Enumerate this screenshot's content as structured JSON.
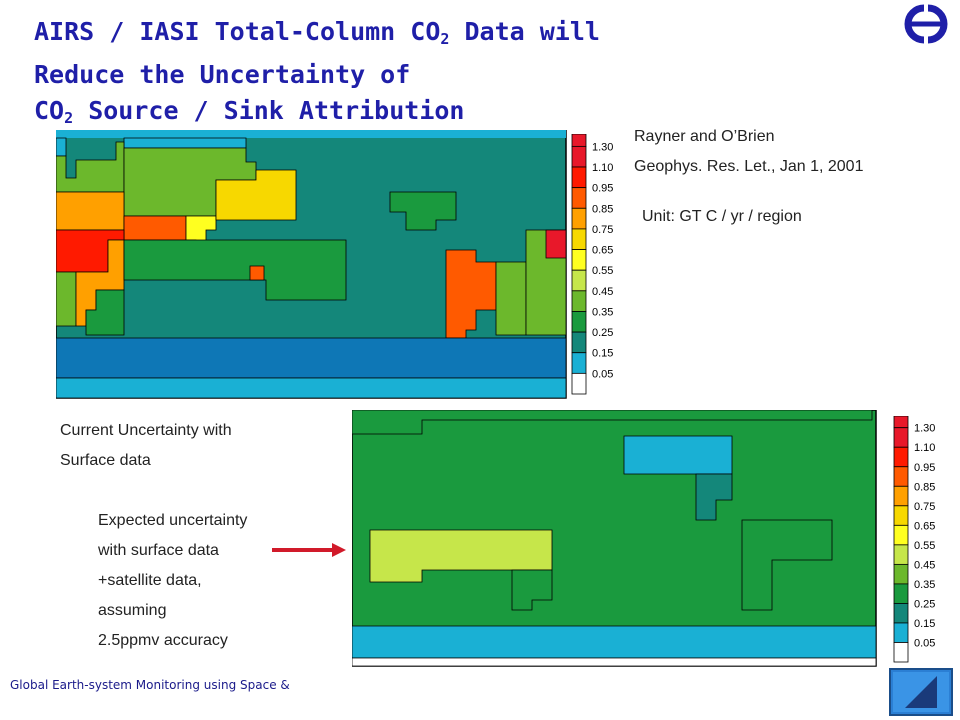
{
  "title": {
    "line1_pre": "AIRS / IASI Total-Column  CO",
    "line1_sub": "2",
    "line1_post": " Data will",
    "line2": "Reduce the Uncertainty  of",
    "line3_pre": "CO",
    "line3_sub": "2",
    "line3_post": "  Source / Sink  Attribution"
  },
  "logo": {
    "icon": "ecmwf-logo-icon",
    "color": "#1f1fa8"
  },
  "reference": {
    "authors": "Rayner and O’Brien",
    "journal": "Geophys. Res. Let., Jan 1, 2001",
    "unit": "Unit: GT C / yr / region"
  },
  "colorbar": {
    "labels": [
      "1.30",
      "1.10",
      "0.95",
      "0.85",
      "0.75",
      "0.65",
      "0.55",
      "0.45",
      "0.35",
      "0.25",
      "0.15",
      "0.05"
    ],
    "colors": [
      "#e8182a",
      "#ff1a00",
      "#ff5a00",
      "#ffa000",
      "#f7d800",
      "#ffff20",
      "#c6e64a",
      "#6cb82c",
      "#1a9a3e",
      "#14877a",
      "#1ab0d4",
      "#ffffff"
    ]
  },
  "map_top_caption": {
    "line1": "Current Uncertainty with",
    "line2": "Surface data"
  },
  "map_bottom_caption": {
    "line1": "Expected uncertainty",
    "line2": "with surface data",
    "line3": "+satellite data,",
    "line4": "assuming",
    "line5": "2.5ppmv accuracy"
  },
  "footer": {
    "text": "Global Earth-system Monitoring using Space &"
  },
  "nav": {
    "icon": "back-triangle-icon"
  }
}
